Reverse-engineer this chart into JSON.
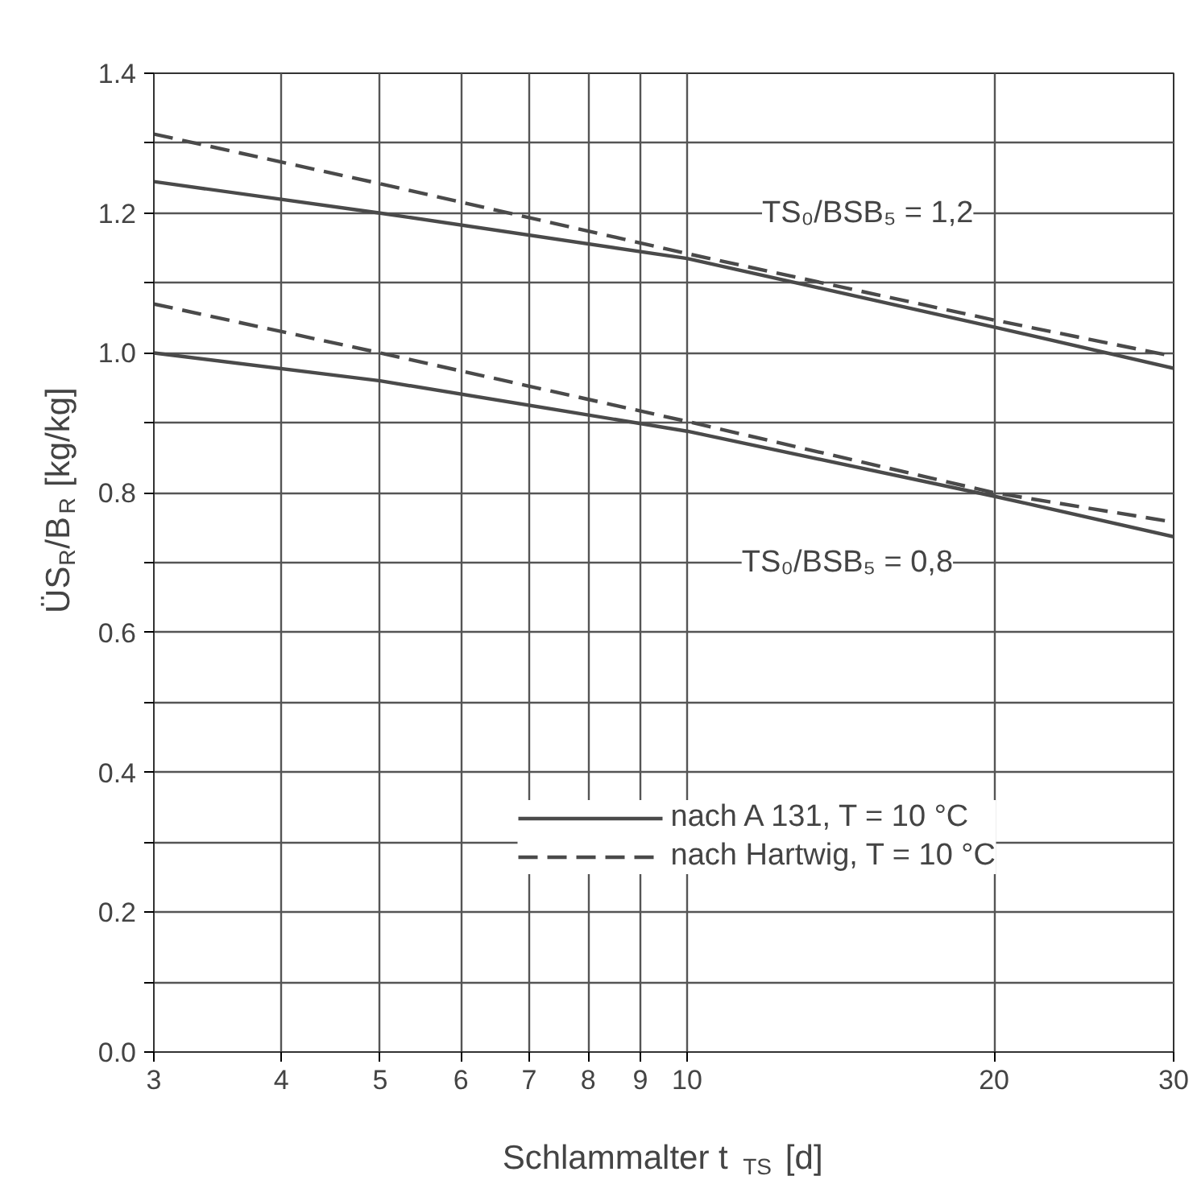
{
  "chart_data": {
    "type": "line",
    "xlabel": "Schlammalter t$_{TS}$ [d]",
    "ylabel": "ÜS$_{R}$/B$_{R}$ [kg/kg]",
    "log": "x",
    "xlim": [
      3,
      30
    ],
    "xticks": [
      3,
      4,
      5,
      6,
      7,
      8,
      {
        "value": 9,
        "label": "9"
      },
      {
        "value": 10,
        "label": "10"
      },
      20,
      30
    ],
    "ylim": [
      0,
      1.4
    ],
    "yticks": [
      {
        "value": 0,
        "label": "0.0"
      },
      {
        "value": 0.1,
        "label": null
      },
      0.2,
      {
        "value": 0.3,
        "label": null
      },
      0.4,
      {
        "value": 0.5,
        "label": null
      },
      0.6,
      {
        "value": 0.7,
        "label": null
      },
      0.8,
      {
        "value": 0.9,
        "label": null
      },
      {
        "value": 1.0,
        "label": "1.0"
      },
      {
        "value": 1.1,
        "label": null
      },
      1.2,
      {
        "value": 1.3,
        "label": null
      },
      1.4
    ],
    "grid": true,
    "legend": "bottom right",
    "x": [
      3,
      5,
      10,
      20,
      30
    ],
    "series": [
      {
        "name": "nach A 131, T = 10 °C",
        "color": "#4a4a4a",
        "line_style": "solid",
        "values": [
          1.245,
          1.2,
          1.135,
          1.037,
          0.978
        ]
      },
      {
        "name": "nach Hartwig, T = 10 °C",
        "color": "#4a4a4a",
        "line_style": "dashed",
        "values": [
          1.313,
          1.242,
          1.142,
          1.047,
          0.995
        ]
      },
      {
        "color": "#4a4a4a",
        "line_style": "solid",
        "values": [
          1.0,
          0.96,
          0.888,
          0.795,
          0.737
        ]
      },
      {
        "color": "#4a4a4a",
        "line_style": "dashed",
        "values": [
          1.07,
          1.0,
          0.902,
          0.8,
          0.758
        ]
      }
    ],
    "annotations": [
      "TS₀/BSB₅ = 1,2",
      "TS₀/BSB₅ = 0,8"
    ]
  }
}
